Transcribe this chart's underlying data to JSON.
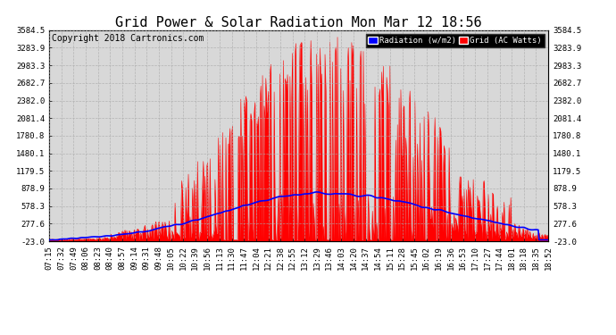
{
  "title": "Grid Power & Solar Radiation Mon Mar 12 18:56",
  "copyright": "Copyright 2018 Cartronics.com",
  "legend_labels": [
    "Radiation (w/m2)",
    "Grid (AC Watts)"
  ],
  "legend_colors": [
    "#0000ff",
    "#ff0000"
  ],
  "ymin": -23.0,
  "ymax": 3584.5,
  "yticks": [
    -23.0,
    277.6,
    578.3,
    878.9,
    1179.5,
    1480.1,
    1780.8,
    2081.4,
    2382.0,
    2682.7,
    2983.3,
    3283.9,
    3584.5
  ],
  "bg_color": "#ffffff",
  "plot_bg_color": "#d8d8d8",
  "grid_color": "#aaaaaa",
  "title_fontsize": 11,
  "copyright_fontsize": 7,
  "tick_fontsize": 6.5,
  "radiation_color": "#0000ff",
  "grid_ac_color": "#ff0000",
  "xtick_labels": [
    "07:15",
    "07:32",
    "07:49",
    "08:06",
    "08:23",
    "08:40",
    "08:57",
    "09:14",
    "09:31",
    "09:48",
    "10:05",
    "10:22",
    "10:39",
    "10:56",
    "11:13",
    "11:30",
    "11:47",
    "12:04",
    "12:21",
    "12:38",
    "12:55",
    "13:12",
    "13:29",
    "13:46",
    "14:03",
    "14:20",
    "14:37",
    "14:54",
    "15:11",
    "15:28",
    "15:45",
    "16:02",
    "16:19",
    "16:36",
    "16:53",
    "17:10",
    "17:27",
    "17:44",
    "18:01",
    "18:18",
    "18:35",
    "18:52"
  ]
}
